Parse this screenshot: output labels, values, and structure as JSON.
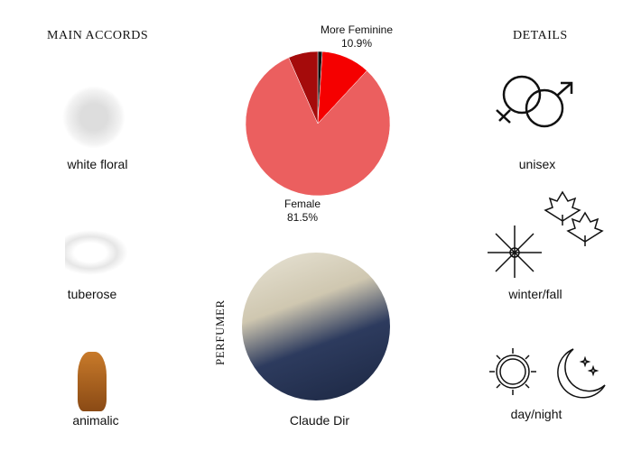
{
  "accords": {
    "title": "MAIN ACCORDS",
    "items": [
      {
        "label": "white floral",
        "icon": "white-flower-icon"
      },
      {
        "label": "tuberose",
        "icon": "tuberose-flower-icon"
      },
      {
        "label": "animalic",
        "icon": "tiger-icon"
      }
    ]
  },
  "details": {
    "title": "DETAILS",
    "items": [
      {
        "label": "unisex",
        "icon": "gender-symbols-icon"
      },
      {
        "label": "winter/fall",
        "icon": "snowflake-leaves-icon"
      },
      {
        "label": "day/night",
        "icon": "sun-moon-icon"
      }
    ]
  },
  "perfumer": {
    "title": "PERFUMER",
    "name": "Claude Dir"
  },
  "chart_data": {
    "type": "pie",
    "slices": [
      {
        "value": 1.0,
        "color": "#111111"
      },
      {
        "name": "More Feminine",
        "label": "More Feminine",
        "pct": "10.9%",
        "value": 10.9,
        "color": "#f50000"
      },
      {
        "name": "Female",
        "label": "Female",
        "pct": "81.5%",
        "value": 81.5,
        "color": "#eb5f5f"
      },
      {
        "value": 6.6,
        "color": "#a50b0b"
      }
    ],
    "start": "top",
    "direction": "clockwise"
  }
}
